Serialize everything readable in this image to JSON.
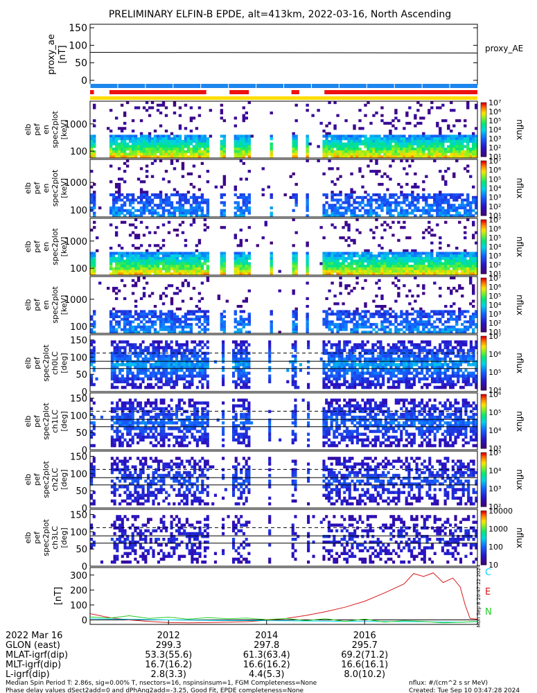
{
  "title": "PRELIMINARY ELFIN-B EPDE, alt=413km, 2022-03-16, North Ascending",
  "colors": {
    "frame": "#000000",
    "blue_bar": "#1c86ee",
    "red_bar": "#ee1111",
    "yellow_bar": "#ffdd00",
    "c_line": "#00d8ff",
    "e_line": "#d81818",
    "n_line": "#22cc22"
  },
  "proxy_ae": {
    "ylabel": "proxy_ae\n[nT]",
    "side_label": "proxy_AE",
    "yticks": [
      "150",
      "100",
      "50",
      "0"
    ],
    "ytick_values": [
      150,
      100,
      50,
      0
    ],
    "ylim": [
      -12,
      160
    ],
    "value": 80
  },
  "bars": {
    "red_segments": [
      [
        0.0,
        0.01
      ],
      [
        0.05,
        0.3
      ],
      [
        0.36,
        0.41
      ],
      [
        0.52,
        0.54
      ],
      [
        0.605,
        1.0
      ]
    ],
    "yellow_segments": [
      [
        0.0,
        1.0
      ]
    ]
  },
  "energy_panels": [
    {
      "ylabel": [
        "elb",
        "pef",
        "en",
        "spec2plot",
        "[keV]"
      ],
      "yticks": [
        "1000",
        "100"
      ],
      "cbar_label": "nflux",
      "cbar_ticks": [
        "10⁷",
        "10⁶",
        "10⁵",
        "10⁴",
        "10³",
        "10²",
        "10¹"
      ],
      "intensity": 1.0
    },
    {
      "ylabel": [
        "elb",
        "pef",
        "en",
        "spec2plot",
        "[keV]"
      ],
      "yticks": [
        "1000",
        "100"
      ],
      "cbar_label": "nflux",
      "cbar_ticks": [
        "10⁷",
        "10⁶",
        "10⁵",
        "10⁴",
        "10³",
        "10²",
        "10¹"
      ],
      "intensity": 0.3
    },
    {
      "ylabel": [
        "elb",
        "pef",
        "en",
        "spec2plot",
        "[keV]"
      ],
      "yticks": [
        "1000",
        "100"
      ],
      "cbar_label": "nflux",
      "cbar_ticks": [
        "10⁷",
        "10⁶",
        "10⁵",
        "10⁴",
        "10³",
        "10²",
        "10¹"
      ],
      "intensity": 1.0
    },
    {
      "ylabel": [
        "elb",
        "pef",
        "en",
        "spec2plot",
        "[keV]"
      ],
      "yticks": [
        "1000",
        "100"
      ],
      "cbar_label": "nflux",
      "cbar_ticks": [
        "10⁷",
        "10⁶",
        "10⁵",
        "10⁴",
        "10³",
        "10²",
        "10¹"
      ],
      "intensity": 0.3
    }
  ],
  "pitch_panels": [
    {
      "ylabel": [
        "elb",
        "pef",
        "spec2plot",
        "ch0LC",
        "[deg]"
      ],
      "yticks": [
        "150",
        "100",
        "50",
        "0"
      ],
      "cbar_label": "nflux",
      "cbar_ticks": [
        "10⁷",
        "10⁶",
        "10⁵",
        "10⁴"
      ],
      "intensity": 0.9
    },
    {
      "ylabel": [
        "elb",
        "pef",
        "spec2plot",
        "ch1LC",
        "[deg]"
      ],
      "yticks": [
        "150",
        "100",
        "50",
        "0"
      ],
      "cbar_label": "nflux",
      "cbar_ticks": [
        "10⁶",
        "10⁵",
        "10⁴",
        "10³"
      ],
      "intensity": 0.7
    },
    {
      "ylabel": [
        "elb",
        "pef",
        "spec2plot",
        "ch2LC",
        "[deg]"
      ],
      "yticks": [
        "150",
        "100",
        "50",
        "0"
      ],
      "cbar_label": "nflux",
      "cbar_ticks": [
        "10⁵",
        "10⁴",
        "10³",
        "10²"
      ],
      "intensity": 0.55
    },
    {
      "ylabel": [
        "elb",
        "pef",
        "spec2plot",
        "ch3LC",
        "[deg]"
      ],
      "yticks": [
        "150",
        "100",
        "50",
        "0"
      ],
      "cbar_label": "nflux",
      "cbar_ticks": [
        "10000",
        "1000",
        "100",
        "10"
      ],
      "intensity": 0.35
    }
  ],
  "mag_panel": {
    "ylabel": "[nT]",
    "yticks": [
      "300",
      "200",
      "100",
      "0"
    ],
    "ytick_values": [
      300,
      200,
      100,
      0
    ],
    "ylim": [
      -30,
      350
    ],
    "labels": [
      "C",
      "E",
      "N"
    ],
    "side_text": "Mon Sep 8 20:47:22 2024"
  },
  "chart_data": {
    "type": "line",
    "title": "PRELIMINARY ELFIN-B EPDE, alt=413km, 2022-03-16, North Ascending",
    "x_ticks": [
      "2012",
      "2014",
      "2016"
    ],
    "x_tick_values": [
      2012,
      2014,
      2016
    ],
    "xlim": [
      2010.4,
      2018.3
    ],
    "ylabel": "[nT]",
    "ylim": [
      -30,
      350
    ],
    "series": [
      {
        "name": "E",
        "x": [
          2010.4,
          2010.8,
          2011.2,
          2011.6,
          2012.0,
          2012.4,
          2012.8,
          2013.2,
          2013.6,
          2014.0,
          2014.4,
          2014.8,
          2015.2,
          2015.6,
          2016.0,
          2016.4,
          2016.8,
          2017.0,
          2017.2,
          2017.4,
          2017.6,
          2017.8,
          2017.95,
          2018.05,
          2018.15,
          2018.3
        ],
        "values": [
          42,
          15,
          0,
          -10,
          -18,
          -20,
          -18,
          -15,
          -12,
          -2,
          10,
          30,
          55,
          85,
          125,
          180,
          240,
          310,
          290,
          315,
          250,
          280,
          220,
          100,
          10,
          5
        ]
      },
      {
        "name": "C",
        "x": [
          2010.4,
          2011.0,
          2012.0,
          2013.0,
          2014.0,
          2015.0,
          2016.0,
          2017.0,
          2018.0,
          2018.3
        ],
        "values": [
          8,
          5,
          0,
          -3,
          -5,
          -8,
          -10,
          -12,
          -15,
          -12
        ]
      },
      {
        "name": "N",
        "x": [
          2010.4,
          2010.8,
          2011.2,
          2011.6,
          2012.0,
          2012.4,
          2012.8,
          2013.2,
          2013.6,
          2014.0,
          2014.4,
          2014.8,
          2015.2,
          2015.6,
          2016.0,
          2016.4,
          2016.8,
          2017.2,
          2017.6,
          2018.0,
          2018.3
        ],
        "values": [
          20,
          12,
          28,
          10,
          18,
          5,
          15,
          8,
          12,
          2,
          10,
          -5,
          8,
          -10,
          5,
          -15,
          -5,
          -10,
          -20,
          -15,
          -10
        ]
      }
    ]
  },
  "ephemeris": {
    "date": "2022 Mar 16",
    "rows": [
      {
        "label": "GLON (east)",
        "values": [
          "299.3",
          "297.8",
          "295.7"
        ]
      },
      {
        "label": "MLAT-igrf(dip)",
        "values": [
          "53.3(55.6)",
          "61.3(63.4)",
          "69.2(71.2)"
        ]
      },
      {
        "label": "MLT-igrf(dip)",
        "values": [
          "16.7(16.2)",
          "16.6(16.2)",
          "16.6(16.1)"
        ]
      },
      {
        "label": "L-igrf(dip)",
        "values": [
          "2.8(3.3)",
          "4.4(5.3)",
          "8.0(10.2)"
        ]
      }
    ]
  },
  "footer": {
    "line1": "Median Spin Period T: 2.86s, sig=0.00% T, nsectors=16, nspinsinsum=1, FGM Completeness=None",
    "line2": "Phase delay values dSect2add=0 and dPhAng2add=-3.25, Good Fit, EPDE completeness=None",
    "units": "nflux: #/(cm^2 s sr MeV)",
    "created": "Created: Tue Sep 10 03:47:28 2024"
  }
}
